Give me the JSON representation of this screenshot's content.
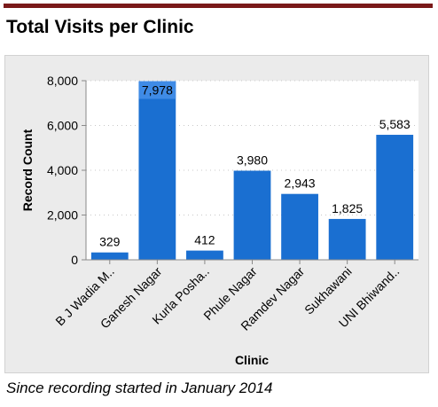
{
  "header": {
    "title": "Total Visits per Clinic",
    "accent_color": "#7a1a1a"
  },
  "caption": "Since recording started in January 2014",
  "chart_data": {
    "type": "bar",
    "title": "",
    "xlabel": "Clinic",
    "ylabel": "Record Count",
    "categories": [
      "B J Wadia M..",
      "Ganesh Nagar",
      "Kurla Posha..",
      "Phule Nagar",
      "Ramdev Nagar",
      "Sukhawani",
      "UNI Bhiwand.."
    ],
    "values": [
      329,
      7978,
      412,
      3980,
      2943,
      1825,
      5583
    ],
    "data_labels": [
      "329",
      "7,978",
      "412",
      "3,980",
      "2,943",
      "1,825",
      "5,583"
    ],
    "ylim": [
      0,
      8000
    ],
    "yticks": [
      0,
      2000,
      4000,
      6000,
      8000
    ],
    "ytick_labels": [
      "0",
      "2,000",
      "4,000",
      "6,000",
      "8,000"
    ],
    "grid": true,
    "legend": "none",
    "colors": {
      "bar": "#1a6fd1",
      "bar_highlight": "#3f8be6",
      "plot_bg": "#ffffff",
      "panel_bg": "#ebebeb",
      "grid": "#c8c8c8"
    }
  }
}
